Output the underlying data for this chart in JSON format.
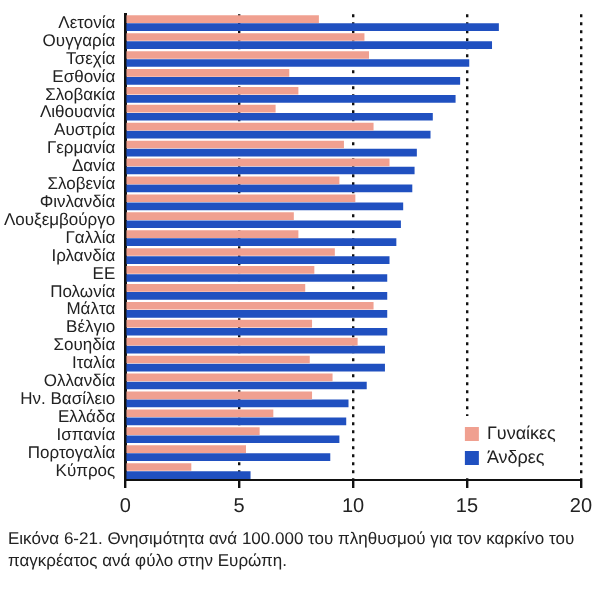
{
  "chart_data": {
    "type": "bar",
    "orientation": "horizontal",
    "categories": [
      "Λετονία",
      "Ουγγαρία",
      "Τσεχία",
      "Εσθονία",
      "Σλοβακία",
      "Λιθουανία",
      "Αυστρία",
      "Γερμανία",
      "Δανία",
      "Σλοβενία",
      "Φινλανδία",
      "Λουξεμβούργο",
      "Γαλλία",
      "Ιρλανδία",
      "ΕΕ",
      "Πολωνία",
      "Μάλτα",
      "Βέλγιο",
      "Σουηδία",
      "Ιταλία",
      "Ολλανδία",
      "Ην. Βασίλειο",
      "Ελλάδα",
      "Ισπανία",
      "Πορτογαλία",
      "Κύπρος"
    ],
    "series": [
      {
        "name": "Γυναίκες",
        "color": "#f0a090",
        "values": [
          8.5,
          10.5,
          10.7,
          7.2,
          7.6,
          6.6,
          10.9,
          9.6,
          11.6,
          9.4,
          10.1,
          7.4,
          7.6,
          9.2,
          8.3,
          7.9,
          10.9,
          8.2,
          10.2,
          8.1,
          9.1,
          8.2,
          6.5,
          5.9,
          5.3,
          2.9
        ]
      },
      {
        "name": "Άνδρες",
        "color": "#2050c0",
        "values": [
          16.4,
          16.1,
          15.1,
          14.7,
          14.5,
          13.5,
          13.4,
          12.8,
          12.7,
          12.6,
          12.2,
          12.1,
          11.9,
          11.6,
          11.5,
          11.5,
          11.5,
          11.5,
          11.4,
          11.4,
          10.6,
          9.8,
          9.7,
          9.4,
          9.0,
          5.5
        ]
      }
    ],
    "xlim": [
      0,
      20
    ],
    "xticks": [
      0,
      5,
      10,
      15,
      20
    ],
    "grid": "x",
    "legend": "bottom right",
    "annotations": [
      "Εικόνα 6-21. Θνησιμότητα ανά 100.000 του πληθυσμού για τον καρκίνο του παγκρέατος ανά φύλο στην Ευρώπη."
    ]
  }
}
